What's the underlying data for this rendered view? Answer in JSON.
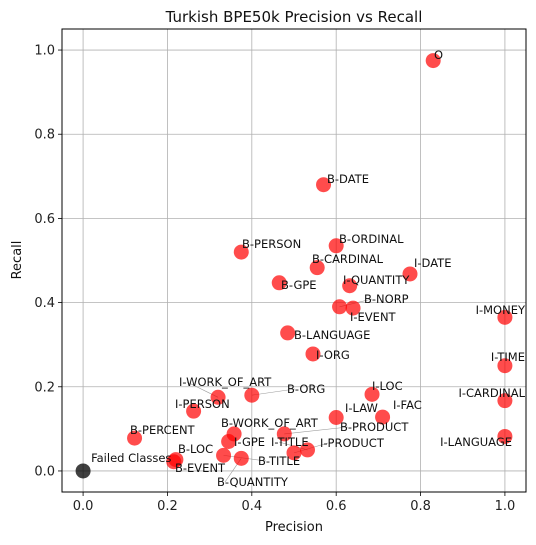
{
  "chart_data": {
    "type": "scatter",
    "title": "Turkish BPE50k Precision vs Recall",
    "xlabel": "Precision",
    "ylabel": "Recall",
    "xlim": [
      -0.05,
      1.05
    ],
    "ylim": [
      -0.05,
      1.05
    ],
    "xticks": [
      "0.0",
      "0.2",
      "0.4",
      "0.6",
      "0.8",
      "1.0"
    ],
    "yticks": [
      "0.0",
      "0.2",
      "0.4",
      "0.6",
      "0.8",
      "1.0"
    ],
    "grid": true,
    "legend": "none",
    "colors": {
      "points": "#ff0000",
      "failed": "#000000",
      "grid": "#b0b0b0"
    },
    "points": [
      {
        "label": "O",
        "x": 0.83,
        "y": 0.975
      },
      {
        "label": "B-DATE",
        "x": 0.57,
        "y": 0.68
      },
      {
        "label": "B-PERSON",
        "x": 0.375,
        "y": 0.52
      },
      {
        "label": "B-ORDINAL",
        "x": 0.6,
        "y": 0.535
      },
      {
        "label": "B-CARDINAL",
        "x": 0.555,
        "y": 0.483
      },
      {
        "label": "I-DATE",
        "x": 0.775,
        "y": 0.468
      },
      {
        "label": "I-QUANTITY",
        "x": 0.632,
        "y": 0.44
      },
      {
        "label": "B-GPE",
        "x": 0.465,
        "y": 0.447
      },
      {
        "label": "B-NORP",
        "x": 0.608,
        "y": 0.39
      },
      {
        "label": "I-EVENT",
        "x": 0.64,
        "y": 0.387
      },
      {
        "label": "I-MONEY",
        "x": 1.0,
        "y": 0.365
      },
      {
        "label": "B-LANGUAGE",
        "x": 0.485,
        "y": 0.328
      },
      {
        "label": "I-ORG",
        "x": 0.545,
        "y": 0.278
      },
      {
        "label": "I-TIME",
        "x": 1.0,
        "y": 0.25
      },
      {
        "label": "I-WORK_OF_ART",
        "x": 0.32,
        "y": 0.175
      },
      {
        "label": "B-ORG",
        "x": 0.4,
        "y": 0.18
      },
      {
        "label": "I-LOC",
        "x": 0.685,
        "y": 0.182
      },
      {
        "label": "I-CARDINAL",
        "x": 1.0,
        "y": 0.167
      },
      {
        "label": "I-PERSON",
        "x": 0.262,
        "y": 0.142
      },
      {
        "label": "I-LAW",
        "x": 0.6,
        "y": 0.127
      },
      {
        "label": "I-FAC",
        "x": 0.71,
        "y": 0.128
      },
      {
        "label": "B-WORK_OF_ART",
        "x": 0.358,
        "y": 0.088
      },
      {
        "label": "B-PRODUCT",
        "x": 0.477,
        "y": 0.088
      },
      {
        "label": "I-LANGUAGE",
        "x": 1.0,
        "y": 0.082
      },
      {
        "label": "B-PERCENT",
        "x": 0.122,
        "y": 0.078
      },
      {
        "label": "I-GPE",
        "x": 0.345,
        "y": 0.07
      },
      {
        "label": "I-TITLE",
        "x": 0.532,
        "y": 0.05
      },
      {
        "label": "I-PRODUCT",
        "x": 0.5,
        "y": 0.043
      },
      {
        "label": "B-LOC",
        "x": 0.22,
        "y": 0.027
      },
      {
        "label": "B-EVENT",
        "x": 0.215,
        "y": 0.022
      },
      {
        "label": "B-TITLE",
        "x": 0.333,
        "y": 0.037
      },
      {
        "label": "B-QUANTITY",
        "x": 0.375,
        "y": 0.03
      }
    ],
    "failed": {
      "label": "Failed Classes",
      "x": 0.0,
      "y": 0.0
    }
  }
}
